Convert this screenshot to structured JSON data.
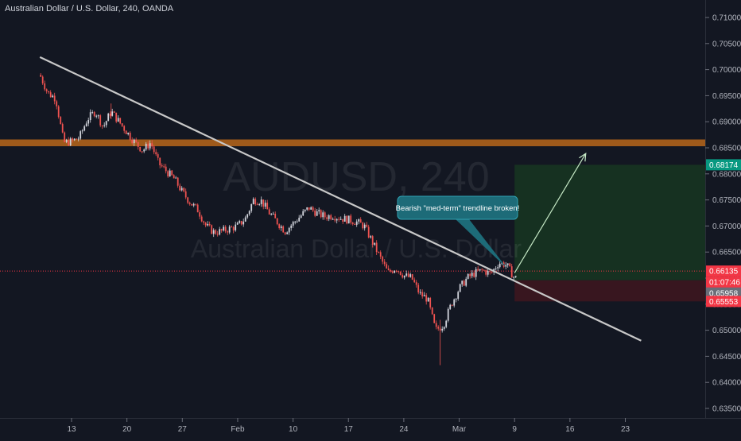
{
  "header": {
    "title": "Australian Dollar / U.S. Dollar, 240, OANDA"
  },
  "watermark": {
    "symbol": "AUDUSD, 240",
    "name": "Australian Dollar / U.S. Dollar"
  },
  "annotation": {
    "text": "Bearish \"med-term\" trendline broken!"
  },
  "price_axis": {
    "ticks": [
      "0.71000",
      "0.70500",
      "0.70000",
      "0.69500",
      "0.69000",
      "0.68500",
      "0.68000",
      "0.67500",
      "0.67000",
      "0.66500",
      "0.66000",
      "0.65500",
      "0.65000",
      "0.64500",
      "0.64000",
      "0.63500"
    ],
    "labels": {
      "target": "0.68174",
      "current": "0.66135",
      "countdown": "01:07:46",
      "entry": "0.65958",
      "stop": "0.65553"
    }
  },
  "time_axis": {
    "ticks": [
      "13",
      "20",
      "27",
      "Feb",
      "10",
      "17",
      "24",
      "Mar",
      "9",
      "16",
      "23"
    ]
  },
  "colors": {
    "background": "#131722",
    "up_candle": "#d1d4dc",
    "down_candle": "#ef5350",
    "resistance_zone": "#b8661a",
    "trendline": "#c8c8c8",
    "profit_zone": "#163322",
    "loss_zone": "#3a1620",
    "target_label": "#089981",
    "current_label": "#f23645",
    "entry_label": "#6a6d78",
    "arrow": "#c5e8c5",
    "callout": "#1d6b78"
  },
  "chart_data": {
    "type": "candlestick",
    "symbol": "AUDUSD",
    "timeframe": "240",
    "ylim": [
      0.632,
      0.7135
    ],
    "x": [
      "13",
      "20",
      "27",
      "Feb",
      "10",
      "17",
      "24",
      "Mar",
      "9",
      "16",
      "23"
    ],
    "close_path": [
      {
        "x": "Jan 9",
        "y": 0.699
      },
      {
        "x": "Jan 10",
        "y": 0.6955
      },
      {
        "x": "Jan 11",
        "y": 0.6945
      },
      {
        "x": "Jan 12",
        "y": 0.686
      },
      {
        "x": "Jan 13",
        "y": 0.6862
      },
      {
        "x": "Jan 14",
        "y": 0.687
      },
      {
        "x": "Jan 15",
        "y": 0.6905
      },
      {
        "x": "Jan 16",
        "y": 0.692
      },
      {
        "x": "Jan 17",
        "y": 0.689
      },
      {
        "x": "Jan 18",
        "y": 0.692
      },
      {
        "x": "Jan 19",
        "y": 0.69
      },
      {
        "x": "Jan 20",
        "y": 0.688
      },
      {
        "x": "Jan 21",
        "y": 0.686
      },
      {
        "x": "Jan 22",
        "y": 0.6845
      },
      {
        "x": "Jan 23",
        "y": 0.686
      },
      {
        "x": "Jan 24",
        "y": 0.682
      },
      {
        "x": "Jan 26",
        "y": 0.679
      },
      {
        "x": "Jan 27",
        "y": 0.6765
      },
      {
        "x": "Jan 28",
        "y": 0.6745
      },
      {
        "x": "Jan 29",
        "y": 0.673
      },
      {
        "x": "Jan 30",
        "y": 0.67
      },
      {
        "x": "Jan 31",
        "y": 0.6688
      },
      {
        "x": "Feb 1",
        "y": 0.669
      },
      {
        "x": "Feb 3",
        "y": 0.67
      },
      {
        "x": "Feb 4",
        "y": 0.6715
      },
      {
        "x": "Feb 5",
        "y": 0.675
      },
      {
        "x": "Feb 6",
        "y": 0.6748
      },
      {
        "x": "Feb 7",
        "y": 0.6725
      },
      {
        "x": "Feb 9",
        "y": 0.669
      },
      {
        "x": "Feb 10",
        "y": 0.6705
      },
      {
        "x": "Feb 11",
        "y": 0.672
      },
      {
        "x": "Feb 12",
        "y": 0.6735
      },
      {
        "x": "Feb 13",
        "y": 0.6725
      },
      {
        "x": "Feb 14",
        "y": 0.6718
      },
      {
        "x": "Feb 15",
        "y": 0.672
      },
      {
        "x": "Feb 16",
        "y": 0.6715
      },
      {
        "x": "Feb 17",
        "y": 0.6712
      },
      {
        "x": "Feb 18",
        "y": 0.6708
      },
      {
        "x": "Feb 19",
        "y": 0.67
      },
      {
        "x": "Feb 20",
        "y": 0.667
      },
      {
        "x": "Feb 21",
        "y": 0.664
      },
      {
        "x": "Feb 22",
        "y": 0.661
      },
      {
        "x": "Feb 23",
        "y": 0.662
      },
      {
        "x": "Feb 24",
        "y": 0.6605
      },
      {
        "x": "Feb 25",
        "y": 0.66
      },
      {
        "x": "Feb 26",
        "y": 0.657
      },
      {
        "x": "Feb 27",
        "y": 0.656
      },
      {
        "x": "Feb 28",
        "y": 0.65
      },
      {
        "x": "Feb 29",
        "y": 0.651
      },
      {
        "x": "Mar 1",
        "y": 0.655
      },
      {
        "x": "Mar 2",
        "y": 0.658
      },
      {
        "x": "Mar 3",
        "y": 0.66
      },
      {
        "x": "Mar 4",
        "y": 0.661
      },
      {
        "x": "Mar 5",
        "y": 0.6615
      },
      {
        "x": "Mar 6",
        "y": 0.6608
      },
      {
        "x": "Mar 7",
        "y": 0.663
      },
      {
        "x": "Mar 8",
        "y": 0.6625
      },
      {
        "x": "Mar 9",
        "y": 0.66
      }
    ],
    "extremes": {
      "high": 0.6935,
      "low": 0.6433
    },
    "levels": {
      "resistance_zone": [
        0.6853,
        0.6866
      ],
      "current_price": 0.66135,
      "entry": 0.65958,
      "target": 0.68174,
      "stop": 0.65553
    },
    "trendline": [
      {
        "x": "Jan 9",
        "y": 0.7024
      },
      {
        "x": "Mar 25",
        "y": 0.648
      }
    ],
    "projection_arrow": [
      {
        "x": "Mar 9",
        "y": 0.661
      },
      {
        "x": "Mar 18",
        "y": 0.6839
      }
    ],
    "grid": false,
    "legend": "none"
  }
}
